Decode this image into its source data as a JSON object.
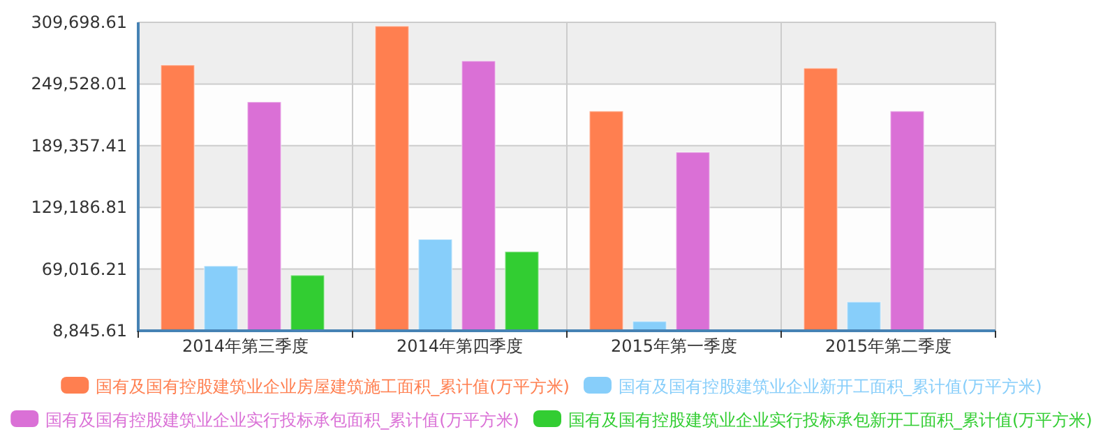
{
  "chart_data": {
    "type": "bar",
    "categories": [
      "2014年第三季度",
      "2014年第四季度",
      "2015年第一季度",
      "2015年第二季度"
    ],
    "series": [
      {
        "name": "国有及国有控股建筑业企业房屋建筑施工面积_累计值(万平方米)",
        "color": "#ff7f50",
        "values": [
          268000,
          306000,
          223000,
          265000
        ]
      },
      {
        "name": "国有及国有控股建筑业企业新开工面积_累计值(万平方米)",
        "color": "#87cefa",
        "values": [
          72000,
          98000,
          18000,
          37000
        ]
      },
      {
        "name": "国有及国有控股建筑业企业实行投标承包面积_累计值(万平方米)",
        "color": "#da70d6",
        "values": [
          232000,
          272000,
          183000,
          223000
        ]
      },
      {
        "name": "国有及国有控股建筑业企业实行投标承包新开工面积_累计值(万平方米)",
        "color": "#32cd32",
        "values": [
          63000,
          86000,
          null,
          null
        ]
      }
    ],
    "ylim": [
      8845.61,
      309698.61
    ],
    "yticks": [
      {
        "value": 8845.61,
        "label": "8,845.61"
      },
      {
        "value": 69016.21,
        "label": "69,016.21"
      },
      {
        "value": 129186.81,
        "label": "129,186.81"
      },
      {
        "value": 189357.41,
        "label": "189,357.41"
      },
      {
        "value": 249528.01,
        "label": "249,528.01"
      },
      {
        "value": 309698.61,
        "label": "309,698.61"
      }
    ],
    "grid": true,
    "legend": "bottom"
  }
}
